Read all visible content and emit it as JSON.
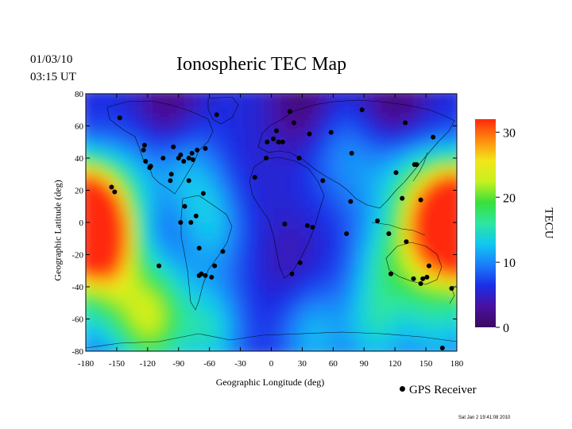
{
  "header": {
    "date": "01/03/10",
    "time": "03:15 UT",
    "title": "Ionospheric TEC Map"
  },
  "axes": {
    "x_label": "Geographic Longitude (deg)",
    "y_label": "Geographic Latitude (deg)",
    "x_ticks": [
      "-180",
      "-150",
      "-120",
      "-90",
      "-60",
      "-30",
      "0",
      "30",
      "60",
      "90",
      "120",
      "150",
      "180"
    ],
    "y_ticks": [
      "80",
      "60",
      "40",
      "20",
      "0",
      "-20",
      "-40",
      "-60",
      "-80"
    ],
    "x_range": [
      -180,
      180
    ],
    "y_range": [
      -80,
      80
    ]
  },
  "colorbar": {
    "unit": "TECU",
    "ticks": [
      "30",
      "20",
      "10",
      "0"
    ],
    "range": [
      0,
      32
    ],
    "colors": [
      "#3a0a5e",
      "#4a10a0",
      "#1a2ee6",
      "#1b7dfa",
      "#10c8f0",
      "#2ee6a0",
      "#38e03a",
      "#c8f020",
      "#f2e61a",
      "#ff8a10",
      "#ff2a0a"
    ]
  },
  "legend": {
    "label": "GPS Receiver"
  },
  "footer": {
    "stamp": "Sat Jan  2 19:41:08 2010"
  },
  "chart_data": {
    "type": "heatmap",
    "title": "Ionospheric TEC Map",
    "xlabel": "Geographic Longitude (deg)",
    "ylabel": "Geographic Latitude (deg)",
    "xlim": [
      -180,
      180
    ],
    "ylim": [
      -80,
      80
    ],
    "colorbar_label": "TECU",
    "colorbar_range": [
      0,
      32
    ],
    "background_tec": 6,
    "tec_features": [
      {
        "lon": -165,
        "lat": -7,
        "tec": 26
      },
      {
        "lon": -170,
        "lat": 5,
        "tec": 17
      },
      {
        "lon": -150,
        "lat": -20,
        "tec": 10
      },
      {
        "lon": 172,
        "lat": 5,
        "tec": 27
      },
      {
        "lon": 150,
        "lat": 0,
        "tec": 17
      },
      {
        "lon": 130,
        "lat": 28,
        "tec": 11
      },
      {
        "lon": 150,
        "lat": -30,
        "tec": 14
      },
      {
        "lon": 110,
        "lat": -25,
        "tec": 13
      },
      {
        "lon": -110,
        "lat": -50,
        "tec": 15
      },
      {
        "lon": -150,
        "lat": -48,
        "tec": 13
      },
      {
        "lon": -60,
        "lat": -68,
        "tec": 14
      },
      {
        "lon": -120,
        "lat": -72,
        "tec": 14
      },
      {
        "lon": 40,
        "lat": -70,
        "tec": 12
      },
      {
        "lon": 100,
        "lat": -65,
        "tec": 13
      },
      {
        "lon": 160,
        "lat": -70,
        "tec": 11
      },
      {
        "lon": -85,
        "lat": 35,
        "tec": 11
      },
      {
        "lon": -130,
        "lat": 30,
        "tec": 10
      },
      {
        "lon": -55,
        "lat": -5,
        "tec": 10
      },
      {
        "lon": -60,
        "lat": 10,
        "tec": 9
      },
      {
        "lon": 60,
        "lat": 45,
        "tec": 9
      },
      {
        "lon": 90,
        "lat": 30,
        "tec": 9
      },
      {
        "lon": 20,
        "lat": -25,
        "tec": 4
      },
      {
        "lon": -30,
        "lat": 20,
        "tec": 5
      },
      {
        "lon": -100,
        "lat": 70,
        "tec": 1
      },
      {
        "lon": 30,
        "lat": 75,
        "tec": 1
      },
      {
        "lon": 120,
        "lat": 75,
        "tec": 1
      }
    ],
    "receivers": [
      {
        "lon": -147,
        "lat": 65
      },
      {
        "lon": -155,
        "lat": 22
      },
      {
        "lon": -152,
        "lat": 19
      },
      {
        "lon": -123,
        "lat": 48
      },
      {
        "lon": -124,
        "lat": 45
      },
      {
        "lon": -122,
        "lat": 38
      },
      {
        "lon": -118,
        "lat": 34
      },
      {
        "lon": -117,
        "lat": 35
      },
      {
        "lon": -105,
        "lat": 40
      },
      {
        "lon": -95,
        "lat": 47
      },
      {
        "lon": -97,
        "lat": 30
      },
      {
        "lon": -98,
        "lat": 26
      },
      {
        "lon": -90,
        "lat": 40
      },
      {
        "lon": -88,
        "lat": 42
      },
      {
        "lon": -85,
        "lat": 38
      },
      {
        "lon": -80,
        "lat": 40
      },
      {
        "lon": -77,
        "lat": 43
      },
      {
        "lon": -76,
        "lat": 39
      },
      {
        "lon": -72,
        "lat": 45
      },
      {
        "lon": -64,
        "lat": 46
      },
      {
        "lon": -53,
        "lat": 67
      },
      {
        "lon": -80,
        "lat": 26
      },
      {
        "lon": -66,
        "lat": 18
      },
      {
        "lon": -84,
        "lat": 10
      },
      {
        "lon": -78,
        "lat": 0
      },
      {
        "lon": -73,
        "lat": 4
      },
      {
        "lon": -70,
        "lat": -16
      },
      {
        "lon": -68,
        "lat": -32
      },
      {
        "lon": -64,
        "lat": -33
      },
      {
        "lon": -58,
        "lat": -34
      },
      {
        "lon": -55,
        "lat": -27
      },
      {
        "lon": -47,
        "lat": -18
      },
      {
        "lon": -70,
        "lat": -33
      },
      {
        "lon": -109,
        "lat": -27
      },
      {
        "lon": -88,
        "lat": 0
      },
      {
        "lon": -16,
        "lat": 28
      },
      {
        "lon": -5,
        "lat": 40
      },
      {
        "lon": -4,
        "lat": 50
      },
      {
        "lon": 2,
        "lat": 52
      },
      {
        "lon": 5,
        "lat": 57
      },
      {
        "lon": 7,
        "lat": 50
      },
      {
        "lon": 11,
        "lat": 50
      },
      {
        "lon": 18,
        "lat": 69
      },
      {
        "lon": 22,
        "lat": 62
      },
      {
        "lon": 27,
        "lat": 40
      },
      {
        "lon": 37,
        "lat": 55
      },
      {
        "lon": 58,
        "lat": 56
      },
      {
        "lon": 88,
        "lat": 70
      },
      {
        "lon": 78,
        "lat": 43
      },
      {
        "lon": 50,
        "lat": 26
      },
      {
        "lon": 13,
        "lat": -1
      },
      {
        "lon": 35,
        "lat": -2
      },
      {
        "lon": 40,
        "lat": -3
      },
      {
        "lon": 28,
        "lat": -25
      },
      {
        "lon": 20,
        "lat": -32
      },
      {
        "lon": 73,
        "lat": -7
      },
      {
        "lon": 77,
        "lat": 13
      },
      {
        "lon": 103,
        "lat": 1
      },
      {
        "lon": 114,
        "lat": -7
      },
      {
        "lon": 121,
        "lat": 31
      },
      {
        "lon": 127,
        "lat": 15
      },
      {
        "lon": 130,
        "lat": 62
      },
      {
        "lon": 139,
        "lat": 36
      },
      {
        "lon": 141,
        "lat": 36
      },
      {
        "lon": 145,
        "lat": 14
      },
      {
        "lon": 157,
        "lat": 53
      },
      {
        "lon": 116,
        "lat": -32
      },
      {
        "lon": 131,
        "lat": -12
      },
      {
        "lon": 138,
        "lat": -35
      },
      {
        "lon": 145,
        "lat": -38
      },
      {
        "lon": 147,
        "lat": -35
      },
      {
        "lon": 151,
        "lat": -34
      },
      {
        "lon": 153,
        "lat": -27
      },
      {
        "lon": 175,
        "lat": -41
      },
      {
        "lon": 166,
        "lat": -78
      }
    ]
  }
}
